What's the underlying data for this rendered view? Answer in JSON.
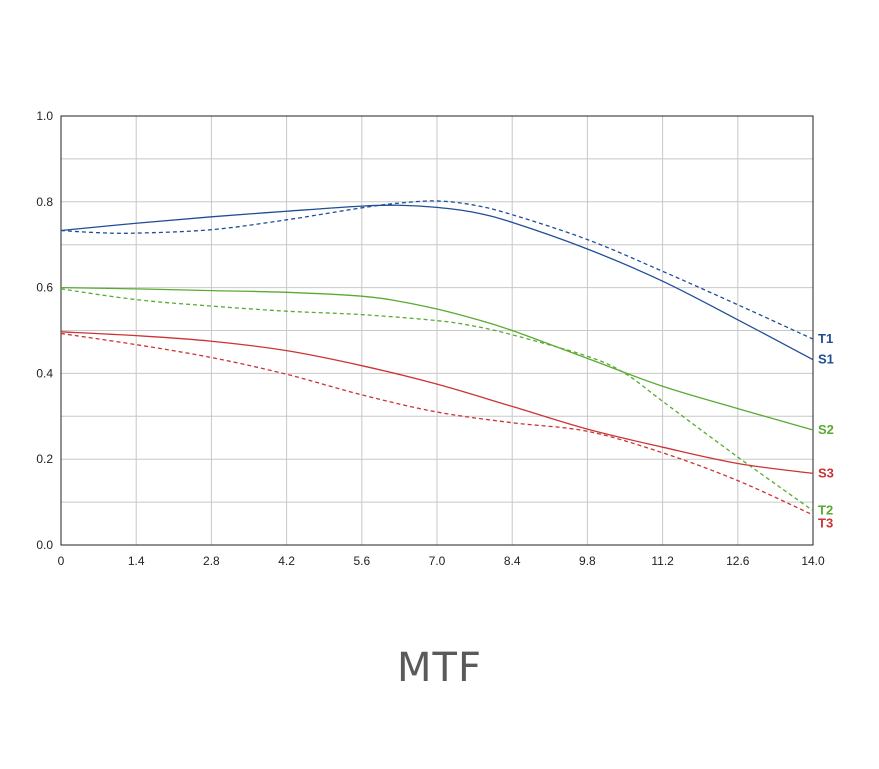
{
  "caption": "MTF",
  "chart_data": {
    "type": "line",
    "title": "",
    "xlabel": "",
    "ylabel": "",
    "xlim": [
      0,
      14.0
    ],
    "ylim": [
      0,
      1.0
    ],
    "grid": true,
    "x_ticks": [
      "0",
      "1.4",
      "2.8",
      "4.2",
      "5.6",
      "7.0",
      "8.4",
      "9.8",
      "11.2",
      "12.6",
      "14.0"
    ],
    "y_ticks": [
      "0.0",
      "0.2",
      "0.4",
      "0.6",
      "0.8",
      "1.0"
    ],
    "series": [
      {
        "name": "S1",
        "color": "#1f4e96",
        "dash": false,
        "x": [
          0,
          1.4,
          2.8,
          4.2,
          5.6,
          6.3,
          7.0,
          7.7,
          8.4,
          9.8,
          11.2,
          12.6,
          14.0
        ],
        "y": [
          0.733,
          0.75,
          0.765,
          0.778,
          0.79,
          0.792,
          0.787,
          0.775,
          0.752,
          0.69,
          0.615,
          0.525,
          0.432
        ]
      },
      {
        "name": "T1",
        "color": "#1f4e96",
        "dash": true,
        "x": [
          0,
          0.7,
          1.4,
          2.8,
          4.2,
          5.6,
          6.3,
          7.0,
          7.7,
          8.4,
          9.8,
          11.2,
          12.6,
          14.0
        ],
        "y": [
          0.733,
          0.728,
          0.727,
          0.735,
          0.758,
          0.786,
          0.797,
          0.802,
          0.792,
          0.77,
          0.712,
          0.638,
          0.56,
          0.48
        ]
      },
      {
        "name": "S2",
        "color": "#5aaa32",
        "dash": false,
        "x": [
          0,
          1.4,
          2.8,
          4.2,
          5.6,
          6.3,
          7.0,
          7.7,
          8.4,
          9.8,
          11.2,
          12.6,
          14.0
        ],
        "y": [
          0.6,
          0.597,
          0.593,
          0.589,
          0.58,
          0.568,
          0.55,
          0.527,
          0.5,
          0.435,
          0.37,
          0.318,
          0.268
        ]
      },
      {
        "name": "T2",
        "color": "#5aaa32",
        "dash": true,
        "x": [
          0,
          1.4,
          2.8,
          4.2,
          5.6,
          7.0,
          7.7,
          8.4,
          9.8,
          10.5,
          11.2,
          12.6,
          14.0
        ],
        "y": [
          0.597,
          0.572,
          0.557,
          0.545,
          0.537,
          0.523,
          0.51,
          0.49,
          0.44,
          0.4,
          0.335,
          0.205,
          0.08
        ]
      },
      {
        "name": "S3",
        "color": "#cc3333",
        "dash": false,
        "x": [
          0,
          1.4,
          2.8,
          4.2,
          5.6,
          7.0,
          8.4,
          9.8,
          11.2,
          12.6,
          14.0
        ],
        "y": [
          0.497,
          0.488,
          0.475,
          0.453,
          0.418,
          0.375,
          0.323,
          0.27,
          0.228,
          0.19,
          0.167
        ]
      },
      {
        "name": "T3",
        "color": "#cc3333",
        "dash": true,
        "x": [
          0,
          1.4,
          2.8,
          4.2,
          5.6,
          7.0,
          8.4,
          9.8,
          11.2,
          12.6,
          14.0
        ],
        "y": [
          0.493,
          0.467,
          0.437,
          0.398,
          0.35,
          0.31,
          0.285,
          0.265,
          0.215,
          0.15,
          0.07
        ]
      }
    ]
  }
}
